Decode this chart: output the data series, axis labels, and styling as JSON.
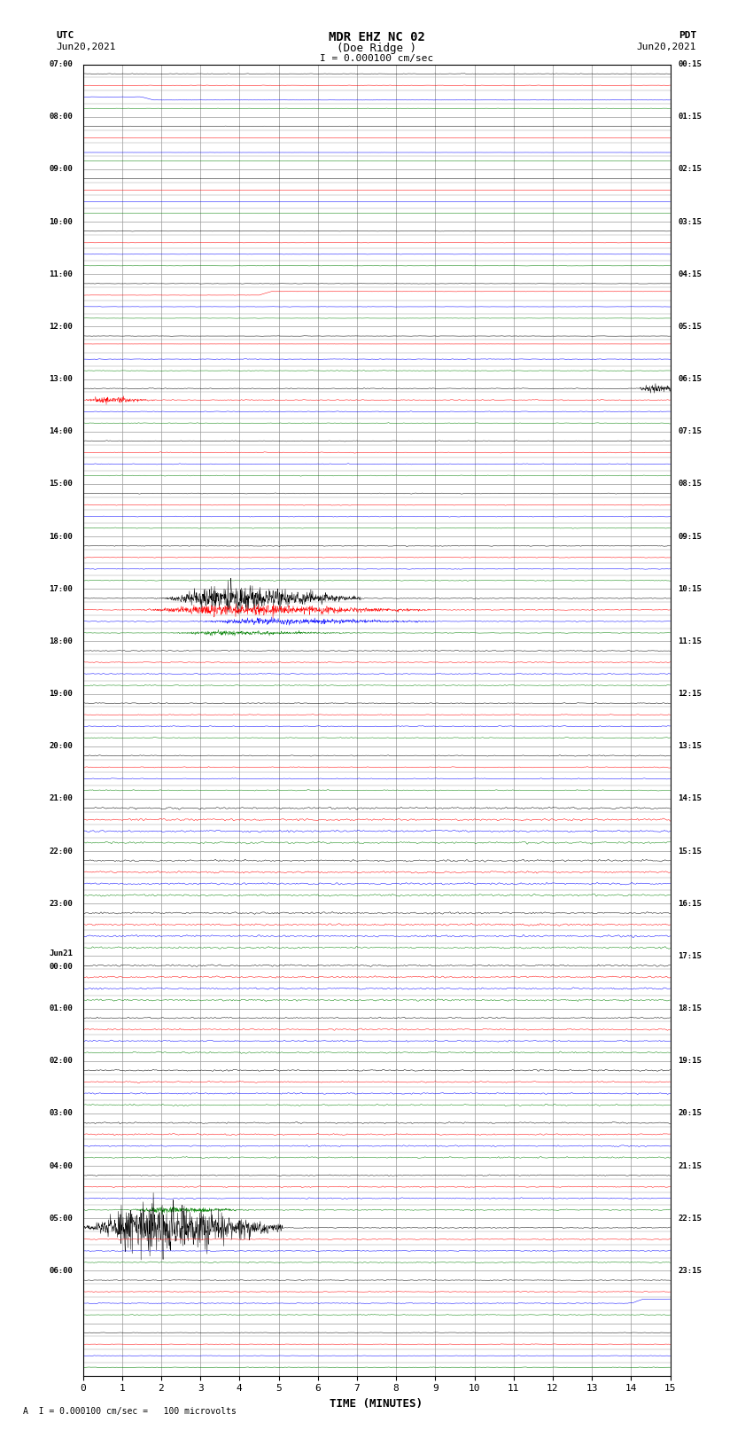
{
  "title_line1": "MDR EHZ NC 02",
  "title_line2": "(Doe Ridge )",
  "scale_label": "I = 0.000100 cm/sec",
  "left_date": "Jun20,2021",
  "right_date": "Jun20,2021",
  "left_tz": "UTC",
  "right_tz": "PDT",
  "xlabel": "TIME (MINUTES)",
  "bottom_label": "A  I = 0.000100 cm/sec =   100 microvolts",
  "utc_times": [
    "07:00",
    "08:00",
    "09:00",
    "10:00",
    "11:00",
    "12:00",
    "13:00",
    "14:00",
    "15:00",
    "16:00",
    "17:00",
    "18:00",
    "19:00",
    "20:00",
    "21:00",
    "22:00",
    "23:00",
    "Jun21\n00:00",
    "01:00",
    "02:00",
    "03:00",
    "04:00",
    "05:00",
    "06:00",
    ""
  ],
  "pdt_times": [
    "00:15",
    "01:15",
    "02:15",
    "03:15",
    "04:15",
    "05:15",
    "06:15",
    "07:15",
    "08:15",
    "09:15",
    "10:15",
    "11:15",
    "12:15",
    "13:15",
    "14:15",
    "15:15",
    "16:15",
    "17:15",
    "18:15",
    "19:15",
    "20:15",
    "21:15",
    "22:15",
    "23:15",
    ""
  ],
  "n_rows": 25,
  "minutes_per_row": 15,
  "colors_cycle": [
    "black",
    "red",
    "blue",
    "green"
  ],
  "bg_color": "#ffffff",
  "grid_color": "#999999"
}
